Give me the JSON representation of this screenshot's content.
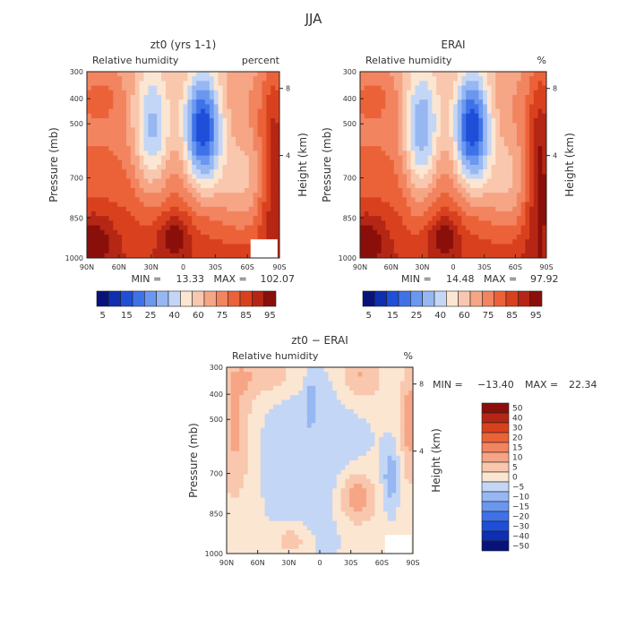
{
  "figure_title": "JJA",
  "chart_data": [
    {
      "type": "heatmap",
      "title": "zt0 (yrs 1-1)",
      "subtitle_left": "Relative humidity",
      "subtitle_right": "percent",
      "ylabel": "Pressure (mb)",
      "y2label": "Height (km)",
      "x_ticks": [
        "90N",
        "60N",
        "30N",
        "0",
        "30S",
        "60S",
        "90S"
      ],
      "y_ticks": [
        "300",
        "400",
        "500",
        "700",
        "850",
        "1000"
      ],
      "y2_ticks": [
        "8",
        "4"
      ],
      "stats": {
        "min_label": "MIN =",
        "min": "13.33",
        "max_label": "MAX =",
        "max": "102.07"
      },
      "colorbar_labels": [
        "5",
        "15",
        "25",
        "40",
        "60",
        "75",
        "85",
        "95"
      ],
      "field": "clim"
    },
    {
      "type": "heatmap",
      "title": "ERAI",
      "subtitle_left": "Relative humidity",
      "subtitle_right": "%",
      "ylabel": "Pressure (mb)",
      "y2label": "Height (km)",
      "x_ticks": [
        "90N",
        "60N",
        "30N",
        "0",
        "30S",
        "60S",
        "90S"
      ],
      "y_ticks": [
        "300",
        "400",
        "500",
        "700",
        "850",
        "1000"
      ],
      "y2_ticks": [
        "8",
        "4"
      ],
      "stats": {
        "min_label": "MIN =",
        "min": "14.48",
        "max_label": "MAX =",
        "max": "97.92"
      },
      "colorbar_labels": [
        "5",
        "15",
        "25",
        "40",
        "60",
        "75",
        "85",
        "95"
      ],
      "field": "clim"
    },
    {
      "type": "heatmap",
      "title": "zt0 − ERAI",
      "subtitle_left": "Relative humidity",
      "subtitle_right": "%",
      "ylabel": "Pressure (mb)",
      "y2label": "Height (km)",
      "x_ticks": [
        "90N",
        "60N",
        "30N",
        "0",
        "30S",
        "60S",
        "90S"
      ],
      "y_ticks": [
        "300",
        "400",
        "500",
        "700",
        "850",
        "1000"
      ],
      "y2_ticks": [
        "8",
        "4"
      ],
      "stats": {
        "min_label": "MIN =",
        "min": "−13.40",
        "max_label": "MAX =",
        "max": "22.34"
      },
      "colorbar_labels": [
        "50",
        "40",
        "30",
        "20",
        "15",
        "10",
        "5",
        "0",
        "−5",
        "−10",
        "−15",
        "−20",
        "−30",
        "−40",
        "−50"
      ],
      "field": "diff"
    }
  ],
  "colors": {
    "clim": [
      "#08137a",
      "#0d2fb0",
      "#1f4fd8",
      "#3f72e8",
      "#6a97ef",
      "#97b7f2",
      "#c4d6f5",
      "#fbe6d2",
      "#f9c7ad",
      "#f6a585",
      "#f28460",
      "#ec6238",
      "#d9411e",
      "#b52614",
      "#8a0f0a"
    ],
    "diff": [
      "#8a0f0a",
      "#b52614",
      "#d9411e",
      "#ec6238",
      "#f28460",
      "#f6a585",
      "#f9c7ad",
      "#fbe6d2",
      "#c4d6f5",
      "#97b7f2",
      "#6a97ef",
      "#3f72e8",
      "#1f4fd8",
      "#0d2fb0",
      "#08137a"
    ]
  }
}
